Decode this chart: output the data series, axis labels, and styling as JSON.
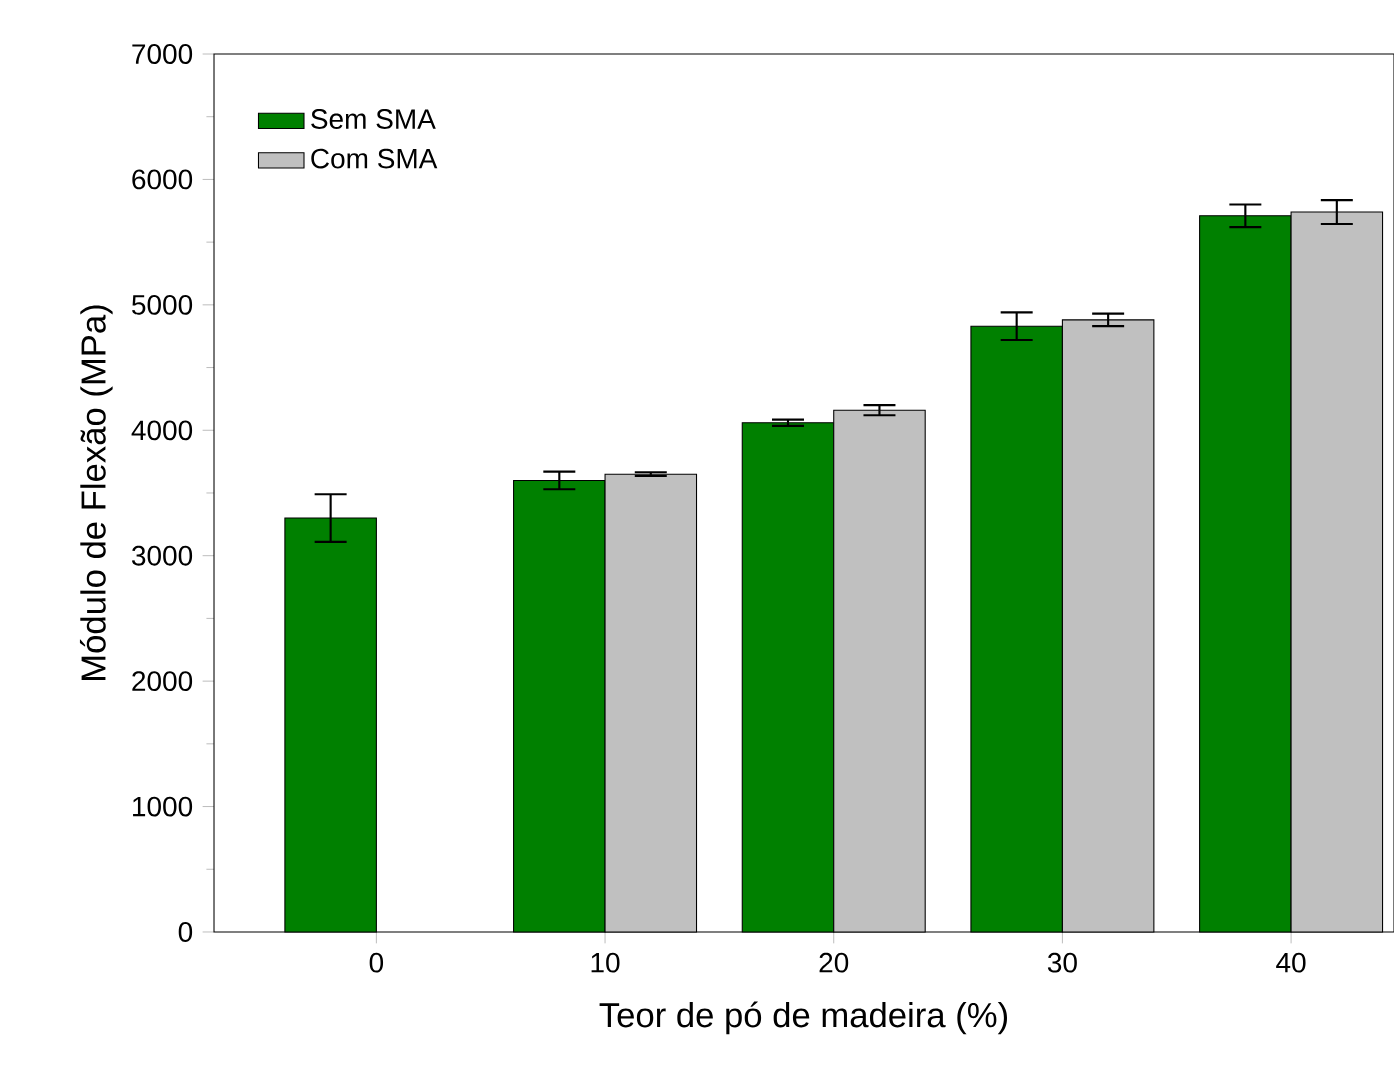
{
  "chart_data": {
    "type": "bar",
    "xlabel": "Teor de pó de madeira (%)",
    "ylabel": "Módulo de Flexão (MPa)",
    "categories": [
      "0",
      "10",
      "20",
      "30",
      "40"
    ],
    "series": [
      {
        "name": "Sem SMA",
        "color": "#008000",
        "values": [
          3300,
          3600,
          4060,
          4830,
          5710
        ],
        "errors": [
          190,
          70,
          25,
          110,
          90
        ]
      },
      {
        "name": "Com SMA",
        "color": "#c0c0c0",
        "values": [
          null,
          3650,
          4160,
          4880,
          5740
        ],
        "errors": [
          null,
          15,
          40,
          50,
          95
        ]
      }
    ],
    "ylim": [
      0,
      7000
    ],
    "yticks": [
      0,
      1000,
      2000,
      3000,
      4000,
      5000,
      6000,
      7000
    ],
    "legend": "top left"
  }
}
